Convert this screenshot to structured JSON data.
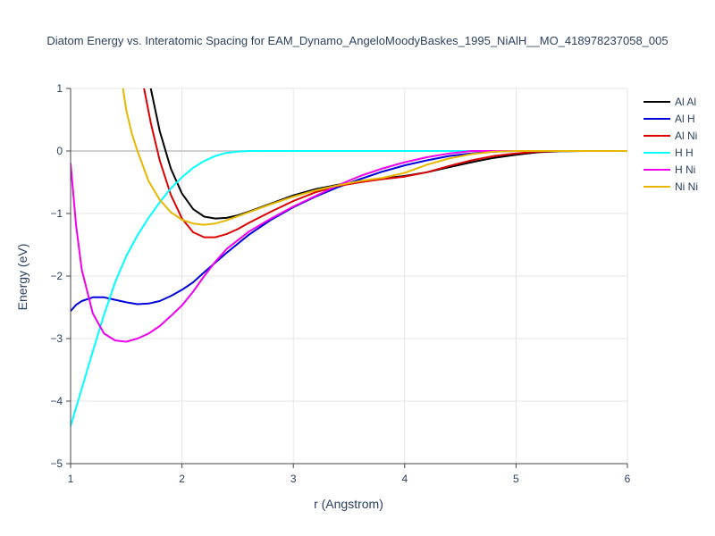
{
  "chart_data": {
    "type": "line",
    "title": "Diatom Energy vs. Interatomic Spacing for EAM_Dynamo_AngeloMoodyBaskes_1995_NiAlH__MO_418978237058_005",
    "xlabel": "r (Angstrom)",
    "ylabel": "Energy (eV)",
    "xlim": [
      1,
      6
    ],
    "ylim": [
      -5,
      1
    ],
    "x_ticks": [
      "1",
      "2",
      "3",
      "4",
      "5",
      "6"
    ],
    "y_ticks": [
      "−5",
      "−4",
      "−3",
      "−2",
      "−1",
      "0",
      "1"
    ],
    "x_tick_values": [
      1,
      2,
      3,
      4,
      5,
      6
    ],
    "y_tick_values": [
      -5,
      -4,
      -3,
      -2,
      -1,
      0,
      1
    ],
    "grid": true,
    "legend_position": "top-right",
    "series": [
      {
        "name": "Al Al",
        "color": "#000000",
        "points": [
          [
            1.72,
            1.0
          ],
          [
            1.8,
            0.32
          ],
          [
            1.9,
            -0.28
          ],
          [
            2.0,
            -0.68
          ],
          [
            2.1,
            -0.93
          ],
          [
            2.2,
            -1.05
          ],
          [
            2.3,
            -1.08
          ],
          [
            2.4,
            -1.07
          ],
          [
            2.5,
            -1.03
          ],
          [
            2.6,
            -0.97
          ],
          [
            2.8,
            -0.84
          ],
          [
            3.0,
            -0.71
          ],
          [
            3.2,
            -0.61
          ],
          [
            3.4,
            -0.54
          ],
          [
            3.6,
            -0.49
          ],
          [
            3.8,
            -0.44
          ],
          [
            4.0,
            -0.4
          ],
          [
            4.2,
            -0.34
          ],
          [
            4.4,
            -0.26
          ],
          [
            4.6,
            -0.18
          ],
          [
            4.8,
            -0.11
          ],
          [
            5.0,
            -0.06
          ],
          [
            5.2,
            -0.02
          ],
          [
            5.4,
            -0.005
          ],
          [
            5.6,
            0
          ],
          [
            6.0,
            0
          ]
        ]
      },
      {
        "name": "Al H",
        "color": "#0000dd",
        "points": [
          [
            1.0,
            -2.56
          ],
          [
            1.05,
            -2.46
          ],
          [
            1.1,
            -2.4
          ],
          [
            1.2,
            -2.34
          ],
          [
            1.3,
            -2.34
          ],
          [
            1.4,
            -2.38
          ],
          [
            1.5,
            -2.42
          ],
          [
            1.6,
            -2.45
          ],
          [
            1.7,
            -2.44
          ],
          [
            1.8,
            -2.4
          ],
          [
            1.9,
            -2.32
          ],
          [
            2.0,
            -2.22
          ],
          [
            2.1,
            -2.1
          ],
          [
            2.2,
            -1.94
          ],
          [
            2.4,
            -1.63
          ],
          [
            2.6,
            -1.34
          ],
          [
            2.8,
            -1.1
          ],
          [
            3.0,
            -0.9
          ],
          [
            3.2,
            -0.73
          ],
          [
            3.4,
            -0.58
          ],
          [
            3.6,
            -0.45
          ],
          [
            3.8,
            -0.33
          ],
          [
            4.0,
            -0.23
          ],
          [
            4.2,
            -0.15
          ],
          [
            4.4,
            -0.08
          ],
          [
            4.6,
            -0.04
          ],
          [
            4.8,
            -0.01
          ],
          [
            5.0,
            0
          ],
          [
            6.0,
            0
          ]
        ]
      },
      {
        "name": "Al Ni",
        "color": "#dd0000",
        "points": [
          [
            1.66,
            1.0
          ],
          [
            1.72,
            0.45
          ],
          [
            1.8,
            -0.15
          ],
          [
            1.9,
            -0.7
          ],
          [
            2.0,
            -1.08
          ],
          [
            2.1,
            -1.3
          ],
          [
            2.2,
            -1.38
          ],
          [
            2.3,
            -1.38
          ],
          [
            2.4,
            -1.33
          ],
          [
            2.5,
            -1.25
          ],
          [
            2.6,
            -1.15
          ],
          [
            2.8,
            -0.97
          ],
          [
            3.0,
            -0.8
          ],
          [
            3.2,
            -0.66
          ],
          [
            3.4,
            -0.56
          ],
          [
            3.6,
            -0.5
          ],
          [
            3.8,
            -0.45
          ],
          [
            4.0,
            -0.41
          ],
          [
            4.2,
            -0.34
          ],
          [
            4.4,
            -0.24
          ],
          [
            4.6,
            -0.15
          ],
          [
            4.8,
            -0.08
          ],
          [
            5.0,
            -0.04
          ],
          [
            5.2,
            -0.01
          ],
          [
            5.4,
            0
          ],
          [
            6.0,
            0
          ]
        ]
      },
      {
        "name": "H H",
        "color": "#00ffff",
        "points": [
          [
            1.0,
            -4.4
          ],
          [
            1.1,
            -3.8
          ],
          [
            1.2,
            -3.2
          ],
          [
            1.3,
            -2.62
          ],
          [
            1.4,
            -2.1
          ],
          [
            1.5,
            -1.68
          ],
          [
            1.6,
            -1.35
          ],
          [
            1.7,
            -1.07
          ],
          [
            1.8,
            -0.82
          ],
          [
            1.9,
            -0.6
          ],
          [
            2.0,
            -0.42
          ],
          [
            2.1,
            -0.27
          ],
          [
            2.2,
            -0.16
          ],
          [
            2.3,
            -0.08
          ],
          [
            2.4,
            -0.03
          ],
          [
            2.5,
            -0.01
          ],
          [
            2.6,
            0
          ],
          [
            6.0,
            0
          ]
        ]
      },
      {
        "name": "H Ni",
        "color": "#ee00ee",
        "points": [
          [
            1.0,
            -0.2
          ],
          [
            1.05,
            -1.2
          ],
          [
            1.1,
            -1.9
          ],
          [
            1.2,
            -2.6
          ],
          [
            1.3,
            -2.92
          ],
          [
            1.4,
            -3.03
          ],
          [
            1.5,
            -3.05
          ],
          [
            1.6,
            -3.0
          ],
          [
            1.7,
            -2.92
          ],
          [
            1.8,
            -2.8
          ],
          [
            1.9,
            -2.64
          ],
          [
            2.0,
            -2.47
          ],
          [
            2.1,
            -2.25
          ],
          [
            2.2,
            -2.0
          ],
          [
            2.3,
            -1.77
          ],
          [
            2.4,
            -1.57
          ],
          [
            2.6,
            -1.29
          ],
          [
            2.8,
            -1.08
          ],
          [
            3.0,
            -0.89
          ],
          [
            3.2,
            -0.72
          ],
          [
            3.4,
            -0.55
          ],
          [
            3.6,
            -0.4
          ],
          [
            3.8,
            -0.28
          ],
          [
            4.0,
            -0.18
          ],
          [
            4.2,
            -0.1
          ],
          [
            4.4,
            -0.04
          ],
          [
            4.6,
            0
          ],
          [
            6.0,
            0
          ]
        ]
      },
      {
        "name": "Ni Ni",
        "color": "#e6b800",
        "points": [
          [
            1.47,
            1.0
          ],
          [
            1.5,
            0.65
          ],
          [
            1.55,
            0.28
          ],
          [
            1.6,
            0.0
          ],
          [
            1.7,
            -0.48
          ],
          [
            1.8,
            -0.78
          ],
          [
            1.9,
            -0.98
          ],
          [
            2.0,
            -1.1
          ],
          [
            2.1,
            -1.16
          ],
          [
            2.2,
            -1.18
          ],
          [
            2.3,
            -1.16
          ],
          [
            2.4,
            -1.11
          ],
          [
            2.6,
            -0.98
          ],
          [
            2.8,
            -0.85
          ],
          [
            3.0,
            -0.73
          ],
          [
            3.2,
            -0.63
          ],
          [
            3.4,
            -0.55
          ],
          [
            3.6,
            -0.48
          ],
          [
            3.8,
            -0.43
          ],
          [
            4.0,
            -0.35
          ],
          [
            4.2,
            -0.22
          ],
          [
            4.4,
            -0.12
          ],
          [
            4.6,
            -0.05
          ],
          [
            4.8,
            -0.01
          ],
          [
            5.0,
            0
          ],
          [
            6.0,
            0
          ]
        ]
      }
    ]
  }
}
